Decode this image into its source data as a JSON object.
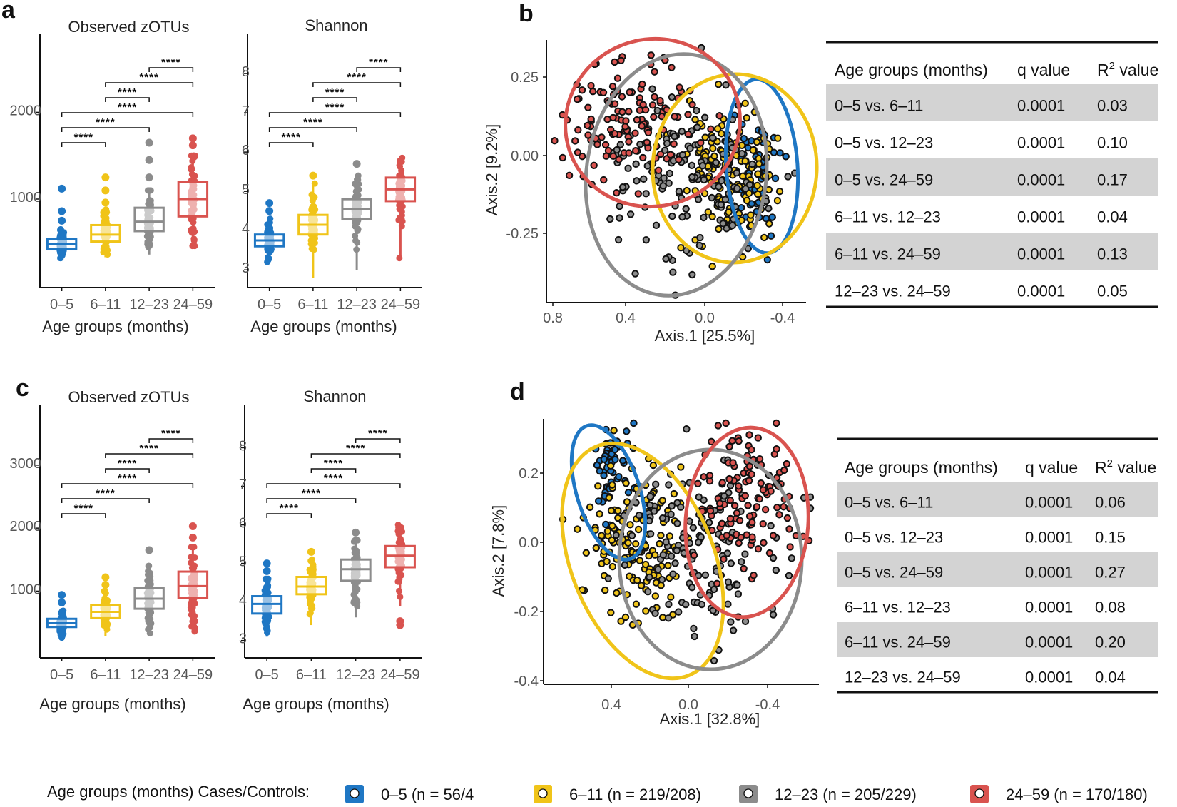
{
  "colors": {
    "g0_5": "#1f77c4",
    "g6_11": "#f0c419",
    "g12_23": "#8c8c8c",
    "g24_59": "#d9534f",
    "band": "#d3d3d3"
  },
  "categories": [
    "0–5",
    "6–11",
    "12–23",
    "24–59"
  ],
  "sig_label": "****",
  "legend": {
    "title": "Age groups (months) Cases/Controls:",
    "items": [
      "0–5 (n = 56/4",
      "6–11 (n = 219/208)",
      "12–23 (n = 205/229)",
      "24–59 (n = 170/180)"
    ]
  },
  "chart_data": [
    {
      "panel": "a",
      "type": "box",
      "title": "Observed zOTUs",
      "xlabel": "Age groups (months)",
      "categories": [
        "0–5",
        "6–11",
        "12–23",
        "24–59"
      ],
      "yticks": [
        1000,
        2000
      ],
      "ylim": [
        -20,
        2900
      ],
      "boxes": [
        {
          "q1": 420,
          "median": 480,
          "q3": 540,
          "min": 320,
          "max": 650,
          "outliers": [
            750,
            860,
            1120
          ]
        },
        {
          "q1": 510,
          "median": 590,
          "q3": 700,
          "min": 330,
          "max": 880,
          "outliers": [
            960,
            1100,
            1250
          ]
        },
        {
          "q1": 630,
          "median": 740,
          "q3": 900,
          "min": 360,
          "max": 1100,
          "outliers": [
            1250,
            1450,
            1650
          ]
        },
        {
          "q1": 800,
          "median": 1000,
          "q3": 1200,
          "min": 460,
          "max": 1500,
          "outliers": [
            1620,
            1700
          ]
        }
      ],
      "comparisons": [
        [
          3,
          4
        ],
        [
          2,
          4
        ],
        [
          2,
          3
        ],
        [
          1,
          4
        ],
        [
          1,
          3
        ],
        [
          1,
          2
        ]
      ]
    },
    {
      "panel": "a",
      "type": "box",
      "title": "Shannon",
      "xlabel": "Age groups (months)",
      "categories": [
        "0–5",
        "6–11",
        "12–23",
        "24–59"
      ],
      "yticks": [
        3,
        4,
        5,
        6,
        7,
        8
      ],
      "ylim": [
        2.55,
        9.0
      ],
      "boxes": [
        {
          "q1": 3.6,
          "median": 3.75,
          "q3": 3.9,
          "min": 3.2,
          "max": 4.3,
          "outliers": [
            4.5,
            4.7
          ]
        },
        {
          "q1": 3.9,
          "median": 4.15,
          "q3": 4.4,
          "min": 2.8,
          "max": 5.2,
          "outliers": [
            5.4
          ]
        },
        {
          "q1": 4.3,
          "median": 4.55,
          "q3": 4.8,
          "min": 3.0,
          "max": 5.4,
          "outliers": [
            5.7
          ]
        },
        {
          "q1": 4.75,
          "median": 5.05,
          "q3": 5.35,
          "min": 3.3,
          "max": 5.9,
          "outliers": []
        }
      ],
      "comparisons": [
        [
          3,
          4
        ],
        [
          2,
          4
        ],
        [
          2,
          3
        ],
        [
          1,
          4
        ],
        [
          1,
          3
        ],
        [
          1,
          2
        ]
      ]
    },
    {
      "panel": "b",
      "type": "scatter",
      "xlabel": "Axis.1   [25.5%]",
      "ylabel": "Axis.2   [9.2%]",
      "xticks": [
        "0.8",
        "0.4",
        "0.0",
        "-0.4"
      ],
      "yticks": [
        "0.25",
        "0.00",
        "-0.25"
      ]
    },
    {
      "panel": "b",
      "type": "table",
      "columns": [
        "Age groups (months)",
        "q value",
        "R2 value"
      ],
      "rows": [
        [
          "0–5 vs. 6–11",
          "0.0001",
          "0.03"
        ],
        [
          "0–5 vs. 12–23",
          "0.0001",
          "0.10"
        ],
        [
          "0–5 vs. 24–59",
          "0.0001",
          "0.17"
        ],
        [
          "6–11 vs. 12–23",
          "0.0001",
          "0.04"
        ],
        [
          "6–11 vs. 24–59",
          "0.0001",
          "0.13"
        ],
        [
          "12–23 vs. 24–59",
          "0.0001",
          "0.05"
        ]
      ]
    },
    {
      "panel": "c",
      "type": "box",
      "title": "Observed zOTUs",
      "xlabel": "Age groups (months)",
      "categories": [
        "0–5",
        "6–11",
        "12–23",
        "24–59"
      ],
      "yticks": [
        1000,
        2000,
        3000
      ],
      "ylim": [
        -60,
        3950
      ],
      "boxes": [
        {
          "q1": 430,
          "median": 490,
          "q3": 560,
          "min": 260,
          "max": 720,
          "outliers": [
            820,
            940
          ]
        },
        {
          "q1": 570,
          "median": 670,
          "q3": 780,
          "min": 280,
          "max": 1000,
          "outliers": [
            1100,
            1220
          ]
        },
        {
          "q1": 720,
          "median": 880,
          "q3": 1050,
          "min": 330,
          "max": 1400,
          "outliers": [
            1650
          ]
        },
        {
          "q1": 890,
          "median": 1080,
          "q3": 1310,
          "min": 360,
          "max": 1700,
          "outliers": [
            1850,
            2030
          ]
        }
      ],
      "comparisons": [
        [
          3,
          4
        ],
        [
          2,
          4
        ],
        [
          2,
          3
        ],
        [
          1,
          4
        ],
        [
          1,
          3
        ],
        [
          1,
          2
        ]
      ]
    },
    {
      "panel": "c",
      "type": "box",
      "title": "Shannon",
      "xlabel": "Age groups (months)",
      "categories": [
        "0–5",
        "6–11",
        "12–23",
        "24–59"
      ],
      "yticks": [
        3,
        4,
        5,
        6,
        7,
        8
      ],
      "ylim": [
        2.55,
        9.1
      ],
      "boxes": [
        {
          "q1": 3.7,
          "median": 3.95,
          "q3": 4.15,
          "min": 3.1,
          "max": 4.6,
          "outliers": [
            4.8,
            5.0
          ]
        },
        {
          "q1": 4.2,
          "median": 4.4,
          "q3": 4.65,
          "min": 3.4,
          "max": 5.1,
          "outliers": [
            5.3
          ]
        },
        {
          "q1": 4.55,
          "median": 4.85,
          "q3": 5.1,
          "min": 3.6,
          "max": 5.6,
          "outliers": [
            5.8
          ]
        },
        {
          "q1": 4.9,
          "median": 5.2,
          "q3": 5.45,
          "min": 3.9,
          "max": 6.0,
          "outliers": [
            3.4,
            3.5
          ]
        }
      ],
      "comparisons": [
        [
          3,
          4
        ],
        [
          2,
          4
        ],
        [
          2,
          3
        ],
        [
          1,
          4
        ],
        [
          1,
          3
        ],
        [
          1,
          2
        ]
      ]
    },
    {
      "panel": "d",
      "type": "scatter",
      "xlabel": "Axis.1   [32.8%]",
      "ylabel": "Axis.2   [7.8%]",
      "xticks": [
        "0.4",
        "0.0",
        "-0.4"
      ],
      "yticks": [
        "0.2",
        "0.0",
        "-0.2",
        "-0.4"
      ]
    },
    {
      "panel": "d",
      "type": "table",
      "columns": [
        "Age groups (months)",
        "q value",
        "R2 value"
      ],
      "rows": [
        [
          "0–5 vs. 6–11",
          "0.0001",
          "0.06"
        ],
        [
          "0–5 vs. 12–23",
          "0.0001",
          "0.15"
        ],
        [
          "0–5 vs. 24–59",
          "0.0001",
          "0.27"
        ],
        [
          "6–11 vs. 12–23",
          "0.0001",
          "0.08"
        ],
        [
          "6–11 vs. 24–59",
          "0.0001",
          "0.20"
        ],
        [
          "12–23 vs. 24–59",
          "0.0001",
          "0.04"
        ]
      ]
    }
  ]
}
